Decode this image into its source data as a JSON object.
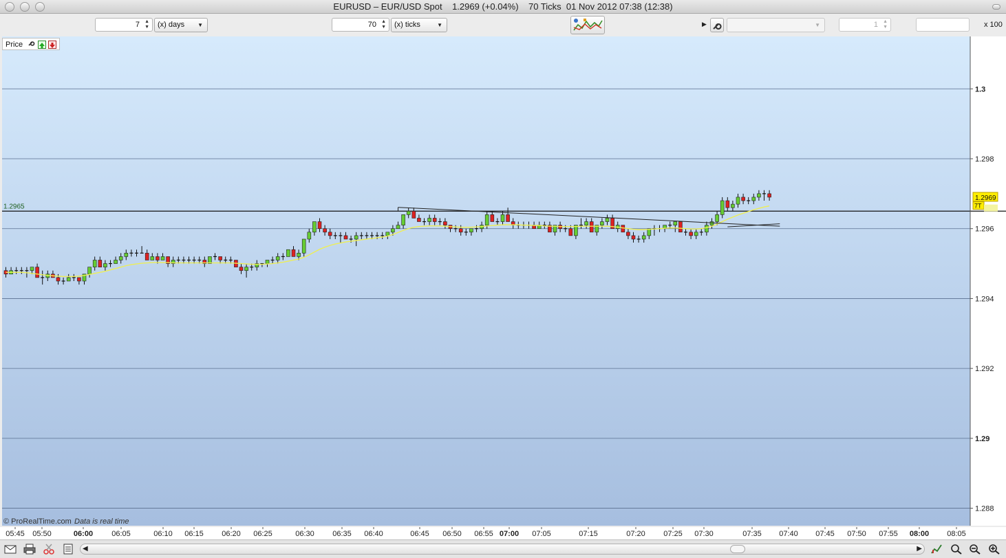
{
  "window": {
    "title": "EURUSD – EUR/USD Spot    1.2969 (+0.04%)    70 Ticks  01 Nov 2012 07:38 (12:38)"
  },
  "toolbar": {
    "period_value": "7",
    "period_unit": "(x) days",
    "ticks_value": "70",
    "ticks_unit": "(x) ticks",
    "right_spin_value": "1",
    "scale_label": "x 100"
  },
  "panel": {
    "label": "Price"
  },
  "footer": {
    "brand": "© ProRealTime.com",
    "status": "Data is real time"
  },
  "colors": {
    "up": "#66cc33",
    "down": "#dd2222",
    "ma": "#eeee55",
    "bg_top": "#d6eafc",
    "bg_bottom": "#a6bedf"
  },
  "chart_data": {
    "type": "candlestick",
    "ylim": [
      1.2875,
      1.3015
    ],
    "yticks": [
      {
        "value": 1.3,
        "label": "1.3",
        "major": true
      },
      {
        "value": 1.298,
        "label": "1.298",
        "major": false
      },
      {
        "value": 1.296,
        "label": "1.296",
        "major": false
      },
      {
        "value": 1.294,
        "label": "1.294",
        "major": false
      },
      {
        "value": 1.292,
        "label": "1.292",
        "major": false
      },
      {
        "value": 1.29,
        "label": "1.29",
        "major": true
      },
      {
        "value": 1.288,
        "label": "1.288",
        "major": false
      }
    ],
    "xticks": [
      {
        "label": "05:45",
        "major": false
      },
      {
        "label": "05:50",
        "major": false
      },
      {
        "label": "06:00",
        "major": true
      },
      {
        "label": "06:05",
        "major": false
      },
      {
        "label": "06:10",
        "major": false
      },
      {
        "label": "06:15",
        "major": false
      },
      {
        "label": "06:20",
        "major": false
      },
      {
        "label": "06:25",
        "major": false
      },
      {
        "label": "06:30",
        "major": false
      },
      {
        "label": "06:35",
        "major": false
      },
      {
        "label": "06:40",
        "major": false
      },
      {
        "label": "06:45",
        "major": false
      },
      {
        "label": "06:50",
        "major": false
      },
      {
        "label": "06:55",
        "major": false
      },
      {
        "label": "07:00",
        "major": true
      },
      {
        "label": "07:05",
        "major": false
      },
      {
        "label": "07:15",
        "major": false
      },
      {
        "label": "07:20",
        "major": false
      },
      {
        "label": "07:25",
        "major": false
      },
      {
        "label": "07:30",
        "major": false
      },
      {
        "label": "07:35",
        "major": false
      },
      {
        "label": "07:40",
        "major": false
      },
      {
        "label": "07:45",
        "major": false
      },
      {
        "label": "07:50",
        "major": false
      },
      {
        "label": "07:55",
        "major": false
      },
      {
        "label": "08:00",
        "major": true
      },
      {
        "label": "08:05",
        "major": false
      }
    ],
    "horizontal_line": {
      "value": 1.2965,
      "label": "1.2965"
    },
    "last_price": {
      "value": 1.2969,
      "label": "1.2969"
    },
    "last_tag": {
      "value": 1.29665,
      "label": "7T"
    },
    "trendline": {
      "start_bar": 75,
      "start_value": 1.29661,
      "end_bar": 148,
      "end_value": 1.29607
    },
    "trendline2": {
      "start_bar": 138,
      "start_value": 1.29605,
      "end_bar": 148,
      "end_value": 1.29614
    },
    "ohlc": [
      [
        1.2948,
        1.2949,
        1.2946,
        1.2947
      ],
      [
        1.2947,
        1.2949,
        1.2947,
        1.2948
      ],
      [
        1.2948,
        1.2949,
        1.2947,
        1.2948
      ],
      [
        1.2948,
        1.2949,
        1.2947,
        1.2948
      ],
      [
        1.2948,
        1.2949,
        1.2946,
        1.2948
      ],
      [
        1.2948,
        1.2949,
        1.2947,
        1.2949
      ],
      [
        1.2949,
        1.295,
        1.2946,
        1.2946
      ],
      [
        1.2946,
        1.2948,
        1.2944,
        1.2946
      ],
      [
        1.2946,
        1.2948,
        1.2945,
        1.2947
      ],
      [
        1.2947,
        1.2948,
        1.2946,
        1.2946
      ],
      [
        1.2946,
        1.2947,
        1.2944,
        1.2945
      ],
      [
        1.2945,
        1.2946,
        1.2944,
        1.2945
      ],
      [
        1.2945,
        1.2947,
        1.2945,
        1.2946
      ],
      [
        1.2946,
        1.2947,
        1.2945,
        1.2946
      ],
      [
        1.2946,
        1.2946,
        1.2944,
        1.2945
      ],
      [
        1.2945,
        1.2947,
        1.2944,
        1.2947
      ],
      [
        1.2947,
        1.2949,
        1.2946,
        1.2949
      ],
      [
        1.2949,
        1.2952,
        1.2948,
        1.2951
      ],
      [
        1.2951,
        1.2952,
        1.2949,
        1.2949
      ],
      [
        1.2949,
        1.2951,
        1.2948,
        1.295
      ],
      [
        1.295,
        1.2951,
        1.2949,
        1.295
      ],
      [
        1.295,
        1.2952,
        1.295,
        1.2951
      ],
      [
        1.2951,
        1.2953,
        1.295,
        1.2952
      ],
      [
        1.2952,
        1.2954,
        1.2951,
        1.2953
      ],
      [
        1.2953,
        1.2954,
        1.2952,
        1.2953
      ],
      [
        1.2953,
        1.2954,
        1.2952,
        1.2953
      ],
      [
        1.2953,
        1.2955,
        1.2953,
        1.2953
      ],
      [
        1.2953,
        1.2954,
        1.2951,
        1.2951
      ],
      [
        1.2951,
        1.2953,
        1.2951,
        1.2952
      ],
      [
        1.2952,
        1.2953,
        1.295,
        1.2951
      ],
      [
        1.2951,
        1.2953,
        1.2951,
        1.2952
      ],
      [
        1.2952,
        1.2952,
        1.2949,
        1.295
      ],
      [
        1.295,
        1.2952,
        1.2949,
        1.2951
      ],
      [
        1.2951,
        1.2952,
        1.295,
        1.2951
      ],
      [
        1.2951,
        1.2952,
        1.295,
        1.2951
      ],
      [
        1.2951,
        1.2952,
        1.295,
        1.2951
      ],
      [
        1.2951,
        1.2952,
        1.295,
        1.2951
      ],
      [
        1.2951,
        1.2952,
        1.295,
        1.2951
      ],
      [
        1.2951,
        1.2952,
        1.2949,
        1.295
      ],
      [
        1.295,
        1.2952,
        1.295,
        1.2952
      ],
      [
        1.2952,
        1.2953,
        1.2951,
        1.2952
      ],
      [
        1.2952,
        1.2952,
        1.295,
        1.2951
      ],
      [
        1.2951,
        1.2952,
        1.295,
        1.2951
      ],
      [
        1.2951,
        1.2952,
        1.295,
        1.2951
      ],
      [
        1.2951,
        1.2951,
        1.2949,
        1.2949
      ],
      [
        1.2949,
        1.295,
        1.2947,
        1.2948
      ],
      [
        1.2948,
        1.295,
        1.2946,
        1.2949
      ],
      [
        1.2949,
        1.295,
        1.2948,
        1.2949
      ],
      [
        1.2949,
        1.2951,
        1.2948,
        1.295
      ],
      [
        1.295,
        1.295,
        1.2949,
        1.295
      ],
      [
        1.295,
        1.2951,
        1.2949,
        1.2951
      ],
      [
        1.2951,
        1.2952,
        1.295,
        1.2951
      ],
      [
        1.2951,
        1.2953,
        1.295,
        1.2952
      ],
      [
        1.2952,
        1.2953,
        1.2951,
        1.2952
      ],
      [
        1.2952,
        1.2954,
        1.2952,
        1.2954
      ],
      [
        1.2954,
        1.2955,
        1.2952,
        1.2952
      ],
      [
        1.2952,
        1.2954,
        1.2951,
        1.2953
      ],
      [
        1.2953,
        1.2957,
        1.2952,
        1.2957
      ],
      [
        1.2957,
        1.296,
        1.2956,
        1.2959
      ],
      [
        1.2959,
        1.2962,
        1.2958,
        1.2962
      ],
      [
        1.2962,
        1.2963,
        1.2959,
        1.296
      ],
      [
        1.296,
        1.2961,
        1.2958,
        1.2959
      ],
      [
        1.2959,
        1.296,
        1.2957,
        1.2958
      ],
      [
        1.2958,
        1.2959,
        1.2957,
        1.2958
      ],
      [
        1.2958,
        1.2959,
        1.2956,
        1.2958
      ],
      [
        1.2958,
        1.2959,
        1.2957,
        1.2957
      ],
      [
        1.2957,
        1.2958,
        1.2956,
        1.2957
      ],
      [
        1.2957,
        1.2959,
        1.2955,
        1.2958
      ],
      [
        1.2958,
        1.2959,
        1.2957,
        1.2958
      ],
      [
        1.2958,
        1.2959,
        1.2957,
        1.2958
      ],
      [
        1.2958,
        1.2959,
        1.2957,
        1.2958
      ],
      [
        1.2958,
        1.2959,
        1.2957,
        1.2958
      ],
      [
        1.2958,
        1.2959,
        1.2957,
        1.2958
      ],
      [
        1.2958,
        1.2959,
        1.2957,
        1.2959
      ],
      [
        1.2959,
        1.2961,
        1.2958,
        1.296
      ],
      [
        1.296,
        1.2962,
        1.296,
        1.2961
      ],
      [
        1.2961,
        1.2964,
        1.296,
        1.2964
      ],
      [
        1.2964,
        1.2966,
        1.2963,
        1.2965
      ],
      [
        1.2965,
        1.2966,
        1.2963,
        1.2963
      ],
      [
        1.2963,
        1.2964,
        1.2962,
        1.2962
      ],
      [
        1.2962,
        1.2963,
        1.2961,
        1.2962
      ],
      [
        1.2962,
        1.2964,
        1.2961,
        1.2963
      ],
      [
        1.2963,
        1.2964,
        1.2961,
        1.2962
      ],
      [
        1.2962,
        1.2963,
        1.2961,
        1.2962
      ],
      [
        1.2962,
        1.2963,
        1.296,
        1.2961
      ],
      [
        1.2961,
        1.2961,
        1.2959,
        1.296
      ],
      [
        1.296,
        1.2961,
        1.2959,
        1.296
      ],
      [
        1.296,
        1.2961,
        1.2958,
        1.2959
      ],
      [
        1.2959,
        1.296,
        1.2958,
        1.2959
      ],
      [
        1.2959,
        1.296,
        1.2958,
        1.296
      ],
      [
        1.296,
        1.2961,
        1.2959,
        1.296
      ],
      [
        1.296,
        1.2962,
        1.2959,
        1.2961
      ],
      [
        1.2961,
        1.2965,
        1.296,
        1.2964
      ],
      [
        1.2964,
        1.2965,
        1.2962,
        1.2962
      ],
      [
        1.2962,
        1.2963,
        1.2961,
        1.2962
      ],
      [
        1.2962,
        1.2965,
        1.2961,
        1.2964
      ],
      [
        1.2964,
        1.2966,
        1.2962,
        1.2962
      ],
      [
        1.2962,
        1.2963,
        1.296,
        1.2961
      ],
      [
        1.2961,
        1.2962,
        1.296,
        1.2961
      ],
      [
        1.2961,
        1.2962,
        1.296,
        1.2961
      ],
      [
        1.2961,
        1.2962,
        1.296,
        1.2961
      ],
      [
        1.2961,
        1.2962,
        1.296,
        1.296
      ],
      [
        1.296,
        1.2962,
        1.296,
        1.2961
      ],
      [
        1.2961,
        1.2962,
        1.296,
        1.2961
      ],
      [
        1.2961,
        1.2962,
        1.2959,
        1.2959
      ],
      [
        1.2959,
        1.2961,
        1.2958,
        1.2961
      ],
      [
        1.2961,
        1.2962,
        1.2959,
        1.296
      ],
      [
        1.296,
        1.2961,
        1.2959,
        1.296
      ],
      [
        1.296,
        1.2961,
        1.2958,
        1.2958
      ],
      [
        1.2958,
        1.2961,
        1.2957,
        1.2961
      ],
      [
        1.2961,
        1.2963,
        1.296,
        1.2961
      ],
      [
        1.2961,
        1.2963,
        1.296,
        1.2962
      ],
      [
        1.2962,
        1.2963,
        1.2959,
        1.2959
      ],
      [
        1.2959,
        1.2961,
        1.2958,
        1.2961
      ],
      [
        1.2961,
        1.2963,
        1.296,
        1.2962
      ],
      [
        1.2962,
        1.2964,
        1.2961,
        1.2963
      ],
      [
        1.2963,
        1.2964,
        1.296,
        1.296
      ],
      [
        1.296,
        1.2962,
        1.2959,
        1.2961
      ],
      [
        1.2961,
        1.2961,
        1.2959,
        1.2959
      ],
      [
        1.2959,
        1.296,
        1.2957,
        1.2958
      ],
      [
        1.2958,
        1.2959,
        1.2956,
        1.2957
      ],
      [
        1.2957,
        1.2958,
        1.2956,
        1.2957
      ],
      [
        1.2957,
        1.2959,
        1.2956,
        1.2958
      ],
      [
        1.2958,
        1.296,
        1.2957,
        1.296
      ],
      [
        1.296,
        1.2961,
        1.2958,
        1.296
      ],
      [
        1.296,
        1.2961,
        1.2959,
        1.296
      ],
      [
        1.296,
        1.2961,
        1.2959,
        1.2961
      ],
      [
        1.2961,
        1.2962,
        1.296,
        1.2961
      ],
      [
        1.2961,
        1.2962,
        1.2959,
        1.2962
      ],
      [
        1.2962,
        1.2962,
        1.2959,
        1.2959
      ],
      [
        1.2959,
        1.296,
        1.2958,
        1.2959
      ],
      [
        1.2959,
        1.296,
        1.2957,
        1.2958
      ],
      [
        1.2958,
        1.296,
        1.2957,
        1.2959
      ],
      [
        1.2959,
        1.296,
        1.2958,
        1.2959
      ],
      [
        1.2959,
        1.2962,
        1.2958,
        1.2961
      ],
      [
        1.2961,
        1.2963,
        1.296,
        1.2962
      ],
      [
        1.2962,
        1.2965,
        1.2961,
        1.2964
      ],
      [
        1.2964,
        1.2969,
        1.2963,
        1.2968
      ],
      [
        1.2968,
        1.2969,
        1.2965,
        1.2966
      ],
      [
        1.2966,
        1.2968,
        1.2965,
        1.2967
      ],
      [
        1.2967,
        1.297,
        1.2966,
        1.2969
      ],
      [
        1.2969,
        1.297,
        1.2967,
        1.2968
      ],
      [
        1.2968,
        1.2969,
        1.2967,
        1.2968
      ],
      [
        1.2968,
        1.297,
        1.2967,
        1.2969
      ],
      [
        1.2969,
        1.2971,
        1.2968,
        1.297
      ],
      [
        1.297,
        1.2971,
        1.2968,
        1.297
      ],
      [
        1.297,
        1.2971,
        1.2968,
        1.2969
      ]
    ],
    "ma": [
      1.29475,
      1.29475,
      1.29475,
      1.29475,
      1.29474,
      1.29472,
      1.2947,
      1.29468,
      1.29466,
      1.29465,
      1.29464,
      1.29463,
      1.29463,
      1.29463,
      1.29464,
      1.29466,
      1.29469,
      1.29472,
      1.29475,
      1.29478,
      1.29482,
      1.29486,
      1.2949,
      1.29494,
      1.29497,
      1.29499,
      1.29501,
      1.29502,
      1.29503,
      1.29503,
      1.29503,
      1.29503,
      1.29502,
      1.29502,
      1.29502,
      1.29502,
      1.29502,
      1.29502,
      1.29502,
      1.29502,
      1.29502,
      1.29502,
      1.29502,
      1.29502,
      1.29501,
      1.295,
      1.29499,
      1.29498,
      1.29498,
      1.29498,
      1.29499,
      1.295,
      1.29502,
      1.29504,
      1.29507,
      1.2951,
      1.29513,
      1.29518,
      1.29525,
      1.29533,
      1.29541,
      1.29547,
      1.29552,
      1.29556,
      1.29559,
      1.29562,
      1.29564,
      1.29566,
      1.29568,
      1.2957,
      1.29572,
      1.29574,
      1.29576,
      1.29579,
      1.29583,
      1.29589,
      1.29595,
      1.296,
      1.29604,
      1.29606,
      1.29607,
      1.29608,
      1.29608,
      1.29608,
      1.29607,
      1.29606,
      1.29605,
      1.29604,
      1.29604,
      1.29604,
      1.29605,
      1.29606,
      1.29608,
      1.29609,
      1.2961,
      1.29611,
      1.29611,
      1.29611,
      1.29611,
      1.2961,
      1.2961,
      1.29609,
      1.29609,
      1.29608,
      1.29607,
      1.29607,
      1.29606,
      1.29606,
      1.29606,
      1.29606,
      1.29607,
      1.29607,
      1.29607,
      1.29607,
      1.29607,
      1.29607,
      1.29606,
      1.29604,
      1.29602,
      1.296,
      1.29598,
      1.29597,
      1.29597,
      1.29598,
      1.29599,
      1.296,
      1.29601,
      1.29602,
      1.29602,
      1.29601,
      1.296,
      1.29599,
      1.29599,
      1.296,
      1.29603,
      1.29607,
      1.29613,
      1.2962,
      1.29627,
      1.29633,
      1.29639,
      1.29644,
      1.29649,
      1.29654,
      1.29658,
      1.29662,
      1.29665
    ]
  }
}
